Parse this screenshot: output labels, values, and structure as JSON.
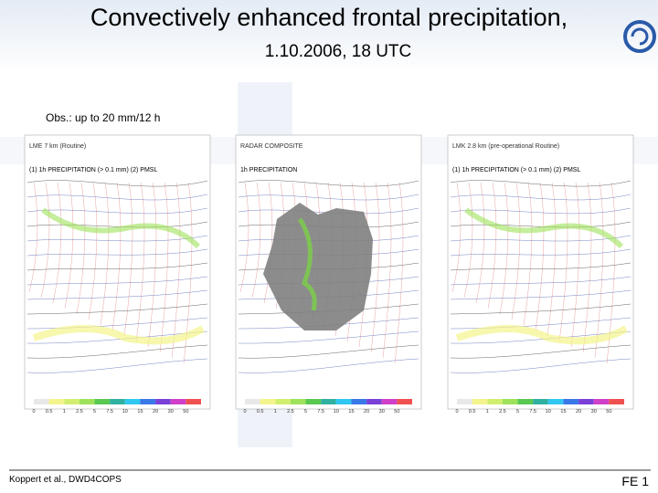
{
  "header": {
    "title": "Convectively enhanced frontal precipitation,",
    "subtitle": "1.10.2006, 18 UTC"
  },
  "note": "Obs.: up to 20 mm/12 h",
  "panels": [
    {
      "title": "LME 7 km (Routine)",
      "caption": "(1) 1h PRECIPITATION (> 0.1 mm) (2) PMSL"
    },
    {
      "title": "RADAR COMPOSITE",
      "caption": "1h PRECIPITATION"
    },
    {
      "title": "LMK 2.8 km (pre-operational Routine)",
      "caption": "(1) 1h PRECIPITATION (> 0.1 mm) (2) PMSL"
    }
  ],
  "legend_scale": [
    "0",
    "0.5",
    "1",
    "2.5",
    "5",
    "7.5",
    "10",
    "15",
    "20",
    "30",
    "50"
  ],
  "footer": {
    "source": "Koppert et al., DWD4COPS",
    "page": "FE 1"
  }
}
